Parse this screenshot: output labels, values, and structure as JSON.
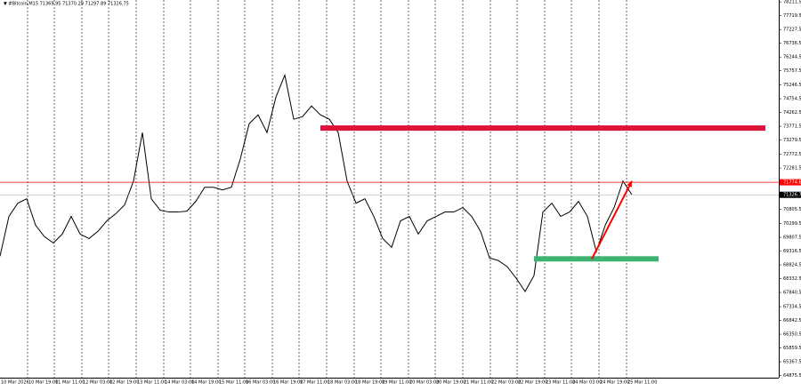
{
  "chart_data": {
    "type": "line",
    "title": "▼ #Bitcoin,M15  71369.95 71370.29 71297.89 71326.75",
    "color": "#000000",
    "values": [
      69136,
      70555,
      71028,
      71186,
      70240,
      69830,
      69609,
      69925,
      70555,
      69925,
      69767,
      70019,
      70398,
      70650,
      70965,
      71816,
      73546,
      71186,
      70776,
      70713,
      70713,
      70744,
      71091,
      71596,
      71596,
      71501,
      71596,
      72605,
      73866,
      74181,
      73546,
      74812,
      75600,
      74024,
      74118,
      74496,
      74181,
      74024,
      73546,
      71816,
      71028,
      71186,
      70555,
      69767,
      69452,
      70398,
      70555,
      69925,
      70398,
      70555,
      70713,
      70713,
      70870,
      70555,
      70019,
      69073,
      68979,
      68758,
      68348,
      67875,
      68443,
      70713,
      71028,
      70555,
      70713,
      71091,
      70555,
      69294,
      70240,
      70870,
      71816,
      71326.75
    ],
    "xlim": [
      0,
      87.5
    ],
    "ylim": [
      64720,
      78280
    ],
    "xticks": [
      {
        "value": 0,
        "label": "10 Mar 2026"
      },
      {
        "value": 3.1,
        "label": "10 Mar 19:00"
      },
      {
        "value": 6.1,
        "label": "11 Mar 11:00"
      },
      {
        "value": 9.2,
        "label": "12 Mar 03:00"
      },
      {
        "value": 12.2,
        "label": "12 Mar 19:00"
      },
      {
        "value": 15.3,
        "label": "13 Mar 11:00"
      },
      {
        "value": 18.4,
        "label": "14 Mar 03:00"
      },
      {
        "value": 21.4,
        "label": "14 Mar 19:00"
      },
      {
        "value": 24.5,
        "label": "15 Mar 11:00"
      },
      {
        "value": 27.5,
        "label": "16 Mar 03:00"
      },
      {
        "value": 30.6,
        "label": "16 Mar 19:00"
      },
      {
        "value": 33.6,
        "label": "17 Mar 11:00"
      },
      {
        "value": 36.7,
        "label": "18 Mar 03:00"
      },
      {
        "value": 39.8,
        "label": "18 Mar 19:00"
      },
      {
        "value": 42.8,
        "label": "19 Mar 11:00"
      },
      {
        "value": 45.9,
        "label": "20 Mar 03:00"
      },
      {
        "value": 48.9,
        "label": "20 Mar 19:00"
      },
      {
        "value": 52.0,
        "label": "21 Mar 11:00"
      },
      {
        "value": 55.1,
        "label": "22 Mar 03:00"
      },
      {
        "value": 58.1,
        "label": "22 Mar 19:00"
      },
      {
        "value": 61.2,
        "label": "23 Mar 11:00"
      },
      {
        "value": 64.2,
        "label": "24 Mar 03:00"
      },
      {
        "value": 67.3,
        "label": "24 Mar 19:00"
      },
      {
        "value": 70.4,
        "label": "25 Mar 11:00"
      }
    ],
    "yticks": [
      {
        "value": 78211.5,
        "label": "78211.50"
      },
      {
        "value": 77719.5,
        "label": "77719.50"
      },
      {
        "value": 77227.5,
        "label": "77227.50"
      },
      {
        "value": 76736.5,
        "label": "76736.50"
      },
      {
        "value": 76244.5,
        "label": "76244.50"
      },
      {
        "value": 75757.5,
        "label": "75757.50"
      },
      {
        "value": 75246.5,
        "label": "75246.50"
      },
      {
        "value": 74754.5,
        "label": "74754.50"
      },
      {
        "value": 74262.5,
        "label": "74262.50"
      },
      {
        "value": 73771.5,
        "label": "73771.50"
      },
      {
        "value": 73279.5,
        "label": "73279.50"
      },
      {
        "value": 72772.5,
        "label": "72772.50"
      },
      {
        "value": 72281.5,
        "label": "72281.50"
      },
      {
        "value": 70805.5,
        "label": "70805.50"
      },
      {
        "value": 70299.5,
        "label": "70299.50"
      },
      {
        "value": 69807.5,
        "label": "69807.50"
      },
      {
        "value": 69316.5,
        "label": "69316.50"
      },
      {
        "value": 68824.5,
        "label": "68824.50"
      },
      {
        "value": 68332.5,
        "label": "68332.50"
      },
      {
        "value": 67840.5,
        "label": "67840.50"
      },
      {
        "value": 67334.5,
        "label": "67334.50"
      },
      {
        "value": 66842.5,
        "label": "66842.50"
      },
      {
        "value": 66350.5,
        "label": "66350.50"
      },
      {
        "value": 65859.5,
        "label": "65859.50"
      },
      {
        "value": 65367.5,
        "label": "65367.50"
      },
      {
        "value": 64875.5,
        "label": "64875.50"
      }
    ],
    "hline": {
      "value": 71774.6,
      "label": "71774.60",
      "color": "#ff0000"
    },
    "current_price": {
      "value": 71326.75,
      "label": "71326.75"
    },
    "zones": [
      {
        "value": 73709,
        "x_from": 36,
        "x_to": 86,
        "color": "#dc143c"
      },
      {
        "value": 69040,
        "x_from": 60,
        "x_to": 74,
        "color": "#3cb371"
      }
    ],
    "arrow": {
      "x_from": 66.5,
      "y_from": 69040,
      "x_to": 71,
      "y_to": 71816,
      "color": "#ff0000"
    }
  }
}
